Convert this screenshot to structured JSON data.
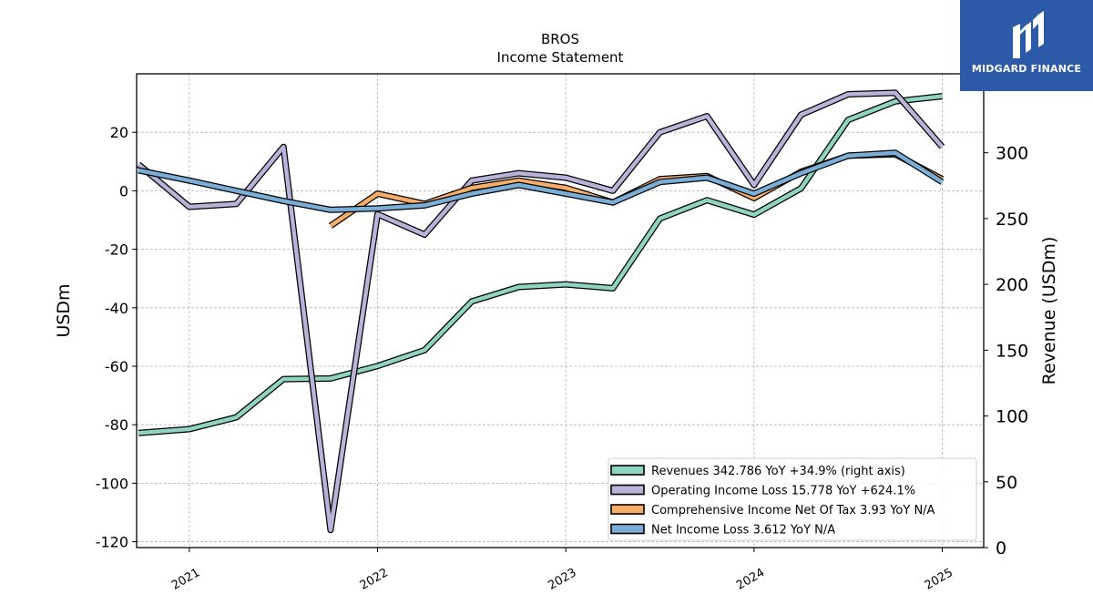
{
  "brand": {
    "name": "MIDGARD FINANCE",
    "accent": "#2c5aa8"
  },
  "chart_data": {
    "type": "line",
    "title": "BROS",
    "subtitle": "Income Statement",
    "ylabel": "USDm",
    "y2label": "Revenue (USDm)",
    "ylim": [
      -122,
      40
    ],
    "y2lim": [
      0,
      360
    ],
    "yticks": [
      20,
      0,
      -20,
      -40,
      -60,
      -80,
      -100,
      -120
    ],
    "y2ticks": [
      0,
      50,
      100,
      150,
      200,
      250,
      300
    ],
    "xlim": [
      2020.72,
      2025.22
    ],
    "xticks": [
      2021,
      2022,
      2023,
      2024,
      2025
    ],
    "xticklabels": [
      "2021",
      "2022",
      "2023",
      "2024",
      "2025"
    ],
    "grid": true,
    "legend_position": "lower-right",
    "x": [
      2020.73,
      2021.0,
      2021.25,
      2021.5,
      2021.75,
      2022.0,
      2022.25,
      2022.5,
      2022.75,
      2023.0,
      2023.25,
      2023.5,
      2023.75,
      2024.0,
      2024.25,
      2024.5,
      2024.75,
      2025.0
    ],
    "series": [
      {
        "name": "Revenues",
        "legend_label": "Revenues  342.786 YoY +34.9% (right axis)",
        "axis": "right",
        "color": "#8fd3c1",
        "values": [
          87,
          90,
          99,
          128,
          128.5,
          138,
          150,
          187,
          198,
          200,
          197,
          250,
          264,
          253,
          273,
          325,
          339,
          343
        ]
      },
      {
        "name": "Operating Income Loss",
        "legend_label": "Operating Income Loss  15.778 YoY +624.1%",
        "axis": "left",
        "color": "#b8b3d8",
        "values": [
          9,
          -5.5,
          -4.5,
          15,
          -116,
          -8,
          -15,
          3.5,
          6,
          4.5,
          0,
          20,
          25.5,
          2,
          26,
          33,
          33.5,
          15
        ]
      },
      {
        "name": "Comprehensive Income Net Of Tax",
        "legend_label": "Comprehensive Income Net Of Tax  3.93 YoY N/A",
        "axis": "left",
        "color": "#f6ae6a",
        "values": [
          null,
          null,
          null,
          null,
          -12,
          -1,
          -4.5,
          1,
          3.5,
          1,
          -4,
          4,
          5,
          -2.5,
          6.5,
          12,
          12.5,
          4
        ]
      },
      {
        "name": "Net Income Loss",
        "legend_label": "Net Income Loss  3.612 YoY N/A",
        "axis": "left",
        "color": "#7aaed6",
        "values": [
          7,
          3.5,
          0,
          -3.5,
          -6.5,
          -6,
          -5,
          -1,
          2,
          -1,
          -4,
          3,
          4.5,
          -1,
          6,
          12,
          13,
          3
        ]
      }
    ]
  }
}
